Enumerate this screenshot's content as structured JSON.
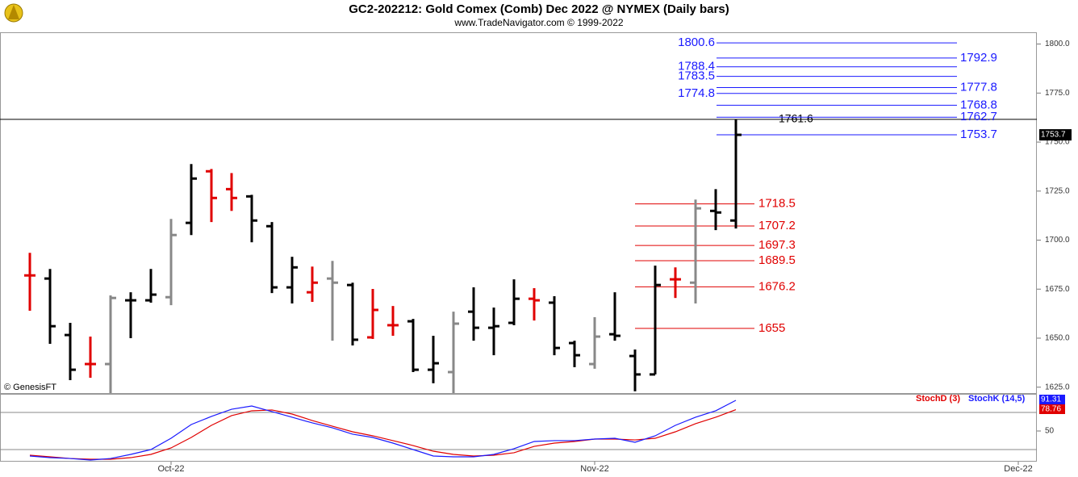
{
  "chart_data": {
    "type": "ohlc",
    "title": "GC2-202212:  Gold Comex (Comb) Dec 2022 @ NYMEX  (Daily bars)",
    "subtitle": "www.TradeNavigator.com © 1999-2022",
    "credit": "© GenesisFT",
    "open": [
      1682.0,
      1680.4,
      1651.6,
      1636.8,
      1636.8,
      1669.3,
      1669.3,
      1670.9,
      1708.8,
      1735.1,
      1726.0,
      1722.3,
      1707.1,
      1675.9,
      1673.4,
      1680.4,
      1677.1,
      1650.4,
      1656.6,
      1658.6,
      1633.9,
      1632.7,
      1663.5,
      1655.3,
      1657.8,
      1670.1,
      1668.1,
      1647.5,
      1636.8,
      1652.0,
      1640.9,
      1631.5,
      1680.0,
      1678.3,
      1714.9,
      1710.0
    ],
    "high": [
      1693.5,
      1685.3,
      1657.8,
      1650.8,
      1671.8,
      1673.4,
      1685.3,
      1710.8,
      1738.8,
      1736.3,
      1734.2,
      1723.1,
      1709.2,
      1691.5,
      1686.5,
      1689.4,
      1678.3,
      1675.1,
      1666.4,
      1659.8,
      1651.2,
      1663.5,
      1675.9,
      1665.6,
      1680.0,
      1675.5,
      1671.4,
      1648.7,
      1660.7,
      1673.4,
      1644.2,
      1687.0,
      1686.1,
      1720.7,
      1726.0,
      1761.6
    ],
    "low": [
      1664.0,
      1647.1,
      1628.6,
      1629.8,
      1622.0,
      1650.0,
      1668.1,
      1666.8,
      1702.6,
      1709.2,
      1714.9,
      1698.9,
      1673.0,
      1667.7,
      1668.5,
      1648.7,
      1646.3,
      1649.6,
      1651.2,
      1632.7,
      1627.0,
      1622.0,
      1648.7,
      1641.3,
      1656.6,
      1659.0,
      1641.3,
      1635.2,
      1634.4,
      1648.7,
      1622.9,
      1631.5,
      1670.5,
      1667.7,
      1705.1,
      1705.9
    ],
    "close": [
      1682.0,
      1656.1,
      1633.9,
      1636.8,
      1670.5,
      1669.3,
      1672.2,
      1702.6,
      1731.4,
      1721.5,
      1721.5,
      1710.0,
      1675.9,
      1686.1,
      1678.3,
      1678.3,
      1649.2,
      1664.4,
      1656.6,
      1633.9,
      1637.2,
      1657.4,
      1655.3,
      1656.1,
      1670.1,
      1669.3,
      1645.0,
      1641.3,
      1650.8,
      1651.2,
      1631.5,
      1677.1,
      1680.0,
      1716.2,
      1714.1,
      1753.7
    ],
    "colors": [
      "#e00000",
      "#000000",
      "#000000",
      "#e00000",
      "#888888",
      "#000000",
      "#000000",
      "#888888",
      "#000000",
      "#e00000",
      "#e00000",
      "#000000",
      "#000000",
      "#000000",
      "#e00000",
      "#888888",
      "#000000",
      "#e00000",
      "#e00000",
      "#000000",
      "#000000",
      "#888888",
      "#000000",
      "#000000",
      "#000000",
      "#e00000",
      "#000000",
      "#000000",
      "#888888",
      "#000000",
      "#000000",
      "#000000",
      "#e00000",
      "#888888",
      "#000000",
      "#000000"
    ],
    "xlim": [
      -1.48,
      49.92
    ],
    "xticks": [
      {
        "value": 7,
        "label": "Oct-22"
      },
      {
        "value": 28,
        "label": "Nov-22"
      },
      {
        "value": 49,
        "label": "Dec-22"
      }
    ],
    "ylim": [
      1622,
      1806
    ],
    "yticks": [
      {
        "value": 1625,
        "label": "1625.0"
      },
      {
        "value": 1650,
        "label": "1650.0"
      },
      {
        "value": 1675,
        "label": "1675.0"
      },
      {
        "value": 1700,
        "label": "1700.0"
      },
      {
        "value": 1725,
        "label": "1725.0"
      },
      {
        "value": 1750,
        "label": "1750.0"
      },
      {
        "value": 1775,
        "label": "1775.0"
      },
      {
        "value": 1800,
        "label": "1800.0"
      }
    ],
    "upper_levels_color": "#1a1aff",
    "upper_levels": [
      {
        "value": 1800.6,
        "side": "left"
      },
      {
        "value": 1792.9,
        "side": "right"
      },
      {
        "value": 1788.4,
        "side": "left"
      },
      {
        "value": 1783.5,
        "side": "left"
      },
      {
        "value": 1777.8,
        "side": "right"
      },
      {
        "value": 1774.8,
        "side": "left"
      },
      {
        "value": 1768.8,
        "side": "right"
      },
      {
        "value": 1762.7,
        "side": "right"
      },
      {
        "value": 1753.7,
        "side": "right"
      }
    ],
    "lower_levels_color": "#e00000",
    "lower_levels": [
      {
        "value": 1718.5
      },
      {
        "value": 1707.2
      },
      {
        "value": 1697.3
      },
      {
        "value": 1689.5
      },
      {
        "value": 1676.2
      },
      {
        "value": 1655.0
      }
    ],
    "high_line": {
      "value": 1761.6,
      "color": "#000000"
    },
    "indicator": {
      "type": "line",
      "ylim": [
        8.7,
        98.9
      ],
      "yticks": [
        50
      ],
      "reference_lines": [
        25,
        75
      ],
      "series": [
        {
          "name": "StochD (3)",
          "color": "#e00000",
          "values": [
            17.4,
            15.2,
            13.0,
            12.0,
            12.0,
            14.1,
            18.5,
            27.2,
            41.3,
            57.6,
            70.7,
            77.2,
            78.3,
            72.8,
            64.1,
            56.5,
            48.9,
            43.5,
            37.0,
            30.4,
            22.8,
            18.5,
            16.3,
            17.4,
            20.7,
            29.3,
            33.7,
            35.9,
            39.1,
            39.1,
            38.0,
            40.2,
            48.9,
            59.8,
            68.5,
            78.76
          ]
        },
        {
          "name": "StochK (14,5)",
          "color": "#1a1aff",
          "values": [
            16.3,
            14.1,
            13.0,
            10.9,
            13.0,
            18.5,
            25.0,
            40.2,
            58.7,
            69.6,
            79.3,
            83.7,
            76.1,
            68.5,
            60.9,
            54.3,
            45.7,
            41.3,
            33.7,
            25.0,
            16.3,
            15.2,
            15.2,
            18.5,
            26.1,
            35.9,
            37.0,
            37.0,
            39.1,
            40.2,
            34.8,
            43.5,
            57.6,
            68.5,
            77.2,
            91.31
          ]
        }
      ]
    }
  }
}
